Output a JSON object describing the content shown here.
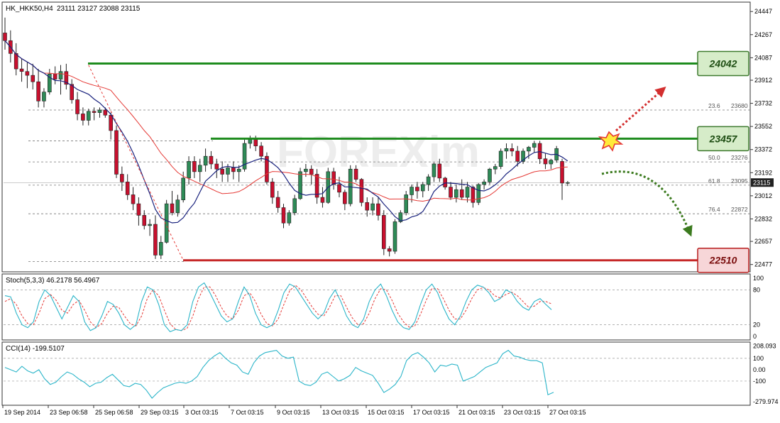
{
  "header": {
    "symbol": "HK_HKK50,H4",
    "ohlc": "23111 23127 23088 23115"
  },
  "watermark": "FOREXim",
  "colors": {
    "bull_candle": "#2e8b57",
    "bear_candle": "#c8102e",
    "ma_fast": "#1a237e",
    "ma_slow": "#e53935",
    "resistance": "#1e8c1e",
    "support": "#c62828",
    "stoch_main": "#2bb5c9",
    "stoch_signal": "#e53935",
    "cci": "#2bb5c9"
  },
  "chart_data": [
    {
      "type": "candlestick",
      "panel": "price",
      "ylim": [
        22420,
        24520
      ],
      "y_ticks": [
        "24447",
        "24267",
        "24087",
        "23912",
        "23732",
        "23552",
        "23372",
        "23192",
        "23012",
        "22832",
        "22657",
        "22477"
      ],
      "price_label": "23115",
      "ohlc": [
        [
          24280,
          24400,
          24150,
          24220
        ],
        [
          24220,
          24300,
          24050,
          24120
        ],
        [
          24120,
          24200,
          23950,
          24000
        ],
        [
          24000,
          24080,
          23900,
          23980
        ],
        [
          23980,
          24050,
          23850,
          23950
        ],
        [
          23950,
          24040,
          23840,
          23900
        ],
        [
          23900,
          24000,
          23700,
          23750
        ],
        [
          23750,
          23850,
          23700,
          23820
        ],
        [
          23820,
          24000,
          23800,
          23960
        ],
        [
          23960,
          24020,
          23880,
          23920
        ],
        [
          23920,
          24030,
          23800,
          23980
        ],
        [
          23980,
          24040,
          23840,
          23880
        ],
        [
          23880,
          23920,
          23730,
          23760
        ],
        [
          23760,
          23820,
          23600,
          23650
        ],
        [
          23650,
          23700,
          23560,
          23600
        ],
        [
          23600,
          23690,
          23560,
          23670
        ],
        [
          23670,
          23700,
          23600,
          23660
        ],
        [
          23660,
          23700,
          23620,
          23680
        ],
        [
          23680,
          23700,
          23620,
          23640
        ],
        [
          23640,
          23660,
          23450,
          23520
        ],
        [
          23520,
          23560,
          23150,
          23180
        ],
        [
          23180,
          23240,
          23050,
          23120
        ],
        [
          23120,
          23180,
          22980,
          23020
        ],
        [
          23020,
          23080,
          22900,
          22950
        ],
        [
          22950,
          23000,
          22780,
          22860
        ],
        [
          22860,
          22900,
          22750,
          22780
        ],
        [
          22780,
          22830,
          22700,
          22790
        ],
        [
          22790,
          22860,
          22520,
          22550
        ],
        [
          22550,
          22700,
          22520,
          22650
        ],
        [
          22650,
          22980,
          22640,
          22950
        ],
        [
          22950,
          23050,
          22860,
          22880
        ],
        [
          22880,
          23020,
          22850,
          22980
        ],
        [
          22980,
          23200,
          22960,
          23150
        ],
        [
          23150,
          23320,
          23100,
          23280
        ],
        [
          23280,
          23320,
          23150,
          23200
        ],
        [
          23200,
          23300,
          23120,
          23250
        ],
        [
          23250,
          23380,
          23200,
          23320
        ],
        [
          23320,
          23360,
          23220,
          23260
        ],
        [
          23260,
          23300,
          23150,
          23220
        ],
        [
          23220,
          23280,
          23120,
          23180
        ],
        [
          23180,
          23260,
          23120,
          23230
        ],
        [
          23230,
          23280,
          23140,
          23200
        ],
        [
          23200,
          23250,
          23120,
          23220
        ],
        [
          23220,
          23450,
          23200,
          23420
        ],
        [
          23420,
          23480,
          23380,
          23450
        ],
        [
          23450,
          23480,
          23360,
          23400
        ],
        [
          23400,
          23430,
          23280,
          23320
        ],
        [
          23320,
          23350,
          23100,
          23120
        ],
        [
          23120,
          23150,
          22950,
          23000
        ],
        [
          23000,
          23050,
          22880,
          22920
        ],
        [
          22920,
          22950,
          22760,
          22800
        ],
        [
          22800,
          22900,
          22780,
          22880
        ],
        [
          22880,
          23020,
          22860,
          22990
        ],
        [
          22990,
          23230,
          22980,
          23200
        ],
        [
          23200,
          23260,
          23160,
          23220
        ],
        [
          23220,
          23250,
          23100,
          23180
        ],
        [
          23180,
          23220,
          22950,
          23000
        ],
        [
          23000,
          23080,
          22920,
          22960
        ],
        [
          22960,
          23230,
          22950,
          23200
        ],
        [
          23200,
          23230,
          23060,
          23100
        ],
        [
          23100,
          23160,
          23000,
          23040
        ],
        [
          23040,
          23060,
          22900,
          22950
        ],
        [
          22950,
          23250,
          22930,
          23220
        ],
        [
          23220,
          23250,
          23120,
          23140
        ],
        [
          23140,
          23150,
          22930,
          22960
        ],
        [
          22960,
          23000,
          22850,
          22900
        ],
        [
          22900,
          23000,
          22860,
          22950
        ],
        [
          22950,
          23000,
          22820,
          22860
        ],
        [
          22860,
          22900,
          22550,
          22600
        ],
        [
          22600,
          22620,
          22540,
          22580
        ],
        [
          22580,
          22830,
          22560,
          22810
        ],
        [
          22810,
          22900,
          22800,
          22880
        ],
        [
          22880,
          23050,
          22860,
          23020
        ],
        [
          23020,
          23100,
          22960,
          23080
        ],
        [
          23080,
          23120,
          22990,
          23050
        ],
        [
          23050,
          23120,
          23000,
          23100
        ],
        [
          23100,
          23180,
          23050,
          23160
        ],
        [
          23160,
          23270,
          23120,
          23260
        ],
        [
          23260,
          23300,
          23120,
          23150
        ],
        [
          23150,
          23160,
          23060,
          23080
        ],
        [
          23080,
          23120,
          22980,
          23000
        ],
        [
          23000,
          23100,
          22960,
          23060
        ],
        [
          23060,
          23140,
          22980,
          23000
        ],
        [
          23000,
          23120,
          22960,
          23080
        ],
        [
          23080,
          23090,
          22920,
          22960
        ],
        [
          22960,
          23110,
          22940,
          23100
        ],
        [
          23100,
          23140,
          23060,
          23120
        ],
        [
          23120,
          23230,
          23100,
          23220
        ],
        [
          23220,
          23260,
          23180,
          23240
        ],
        [
          23240,
          23380,
          23220,
          23360
        ],
        [
          23360,
          23420,
          23300,
          23380
        ],
        [
          23380,
          23420,
          23320,
          23360
        ],
        [
          23360,
          23400,
          23240,
          23280
        ],
        [
          23280,
          23380,
          23260,
          23360
        ],
        [
          23360,
          23400,
          23300,
          23390
        ],
        [
          23390,
          23440,
          23350,
          23420
        ],
        [
          23420,
          23440,
          23260,
          23300
        ],
        [
          23300,
          23340,
          23220,
          23260
        ],
        [
          23260,
          23300,
          23220,
          23290
        ],
        [
          23290,
          23400,
          23270,
          23380
        ],
        [
          23280,
          23300,
          22980,
          23111
        ],
        [
          23111,
          23127,
          23088,
          23115
        ]
      ]
    },
    {
      "type": "line",
      "panel": "stochastic",
      "title": "Stoch(5,3,3) 46.2178 56.4967",
      "ylim": [
        0,
        100
      ],
      "y_ticks": [
        "100",
        "80",
        "20",
        "0"
      ],
      "series": [
        {
          "role": "main",
          "values": [
            70,
            68,
            40,
            20,
            15,
            25,
            60,
            80,
            70,
            50,
            30,
            50,
            70,
            60,
            25,
            10,
            15,
            35,
            60,
            55,
            40,
            20,
            12,
            20,
            60,
            85,
            80,
            55,
            20,
            8,
            12,
            10,
            20,
            60,
            85,
            92,
            75,
            55,
            35,
            25,
            30,
            60,
            85,
            70,
            40,
            20,
            15,
            20,
            45,
            75,
            90,
            85,
            70,
            55,
            40,
            30,
            40,
            65,
            80,
            60,
            35,
            20,
            15,
            30,
            60,
            80,
            90,
            70,
            45,
            25,
            15,
            12,
            25,
            55,
            80,
            90,
            75,
            50,
            30,
            20,
            35,
            60,
            80,
            88,
            85,
            75,
            60,
            65,
            80,
            75,
            60,
            50,
            45,
            60,
            65,
            55,
            46
          ]
        },
        {
          "role": "signal",
          "values": [
            60,
            65,
            55,
            35,
            22,
            20,
            40,
            65,
            72,
            62,
            45,
            40,
            55,
            62,
            45,
            25,
            15,
            22,
            40,
            52,
            50,
            35,
            22,
            18,
            35,
            65,
            80,
            70,
            45,
            22,
            12,
            10,
            14,
            35,
            65,
            85,
            85,
            70,
            50,
            35,
            30,
            45,
            70,
            75,
            60,
            38,
            22,
            18,
            30,
            55,
            78,
            88,
            80,
            65,
            50,
            38,
            35,
            50,
            70,
            70,
            50,
            32,
            20,
            22,
            40,
            65,
            82,
            80,
            62,
            40,
            25,
            16,
            18,
            38,
            62,
            82,
            82,
            65,
            45,
            30,
            30,
            45,
            65,
            80,
            84,
            80,
            70,
            66,
            72,
            76,
            70,
            60,
            50,
            52,
            60,
            60,
            56
          ]
        }
      ]
    },
    {
      "type": "line",
      "panel": "cci",
      "title": "CCI(14) -199.5107",
      "ylim": [
        -300,
        230
      ],
      "y_ticks": [
        "208.093",
        "100",
        "0.00",
        "-100",
        "-279.974"
      ],
      "series": [
        {
          "role": "cci",
          "values": [
            20,
            0,
            -20,
            30,
            -10,
            -30,
            0,
            -80,
            -130,
            -110,
            -60,
            -20,
            -40,
            -80,
            -110,
            -150,
            -120,
            -110,
            -70,
            -40,
            -90,
            -140,
            -150,
            -120,
            -130,
            -180,
            -250,
            -200,
            -160,
            -140,
            -120,
            -110,
            -120,
            -100,
            -60,
            20,
            80,
            120,
            150,
            100,
            60,
            40,
            -20,
            -40,
            60,
            120,
            150,
            160,
            170,
            120,
            100,
            110,
            -100,
            -130,
            -140,
            -110,
            -40,
            -20,
            -60,
            -100,
            -80,
            -50,
            20,
            -10,
            -30,
            -50,
            -120,
            -200,
            -170,
            -130,
            -60,
            80,
            130,
            150,
            110,
            60,
            -20,
            40,
            30,
            50,
            40,
            -100,
            -80,
            -60,
            -20,
            20,
            40,
            60,
            140,
            170,
            120,
            110,
            90,
            80,
            80,
            60,
            -220,
            -199
          ]
        }
      ]
    }
  ],
  "levels": {
    "resistance_high": "24042",
    "resistance_mid": "23457",
    "support_low": "22510"
  },
  "fib_labels": [
    {
      "level": "23.6",
      "price": "23680"
    },
    {
      "level": "50.0",
      "price": "23276"
    },
    {
      "level": "61.8",
      "price": "23095"
    },
    {
      "level": "76.4",
      "price": "22872"
    }
  ],
  "time_axis": [
    "19 Sep 2014",
    "23 Sep 06:58",
    "25 Sep 06:58",
    "29 Sep 03:15",
    "3 Oct 03:15",
    "7 Oct 03:15",
    "9 Oct 03:15",
    "13 Oct 03:15",
    "15 Oct 03:15",
    "17 Oct 03:15",
    "21 Oct 03:15",
    "23 Oct 03:15",
    "27 Oct 03:15"
  ]
}
